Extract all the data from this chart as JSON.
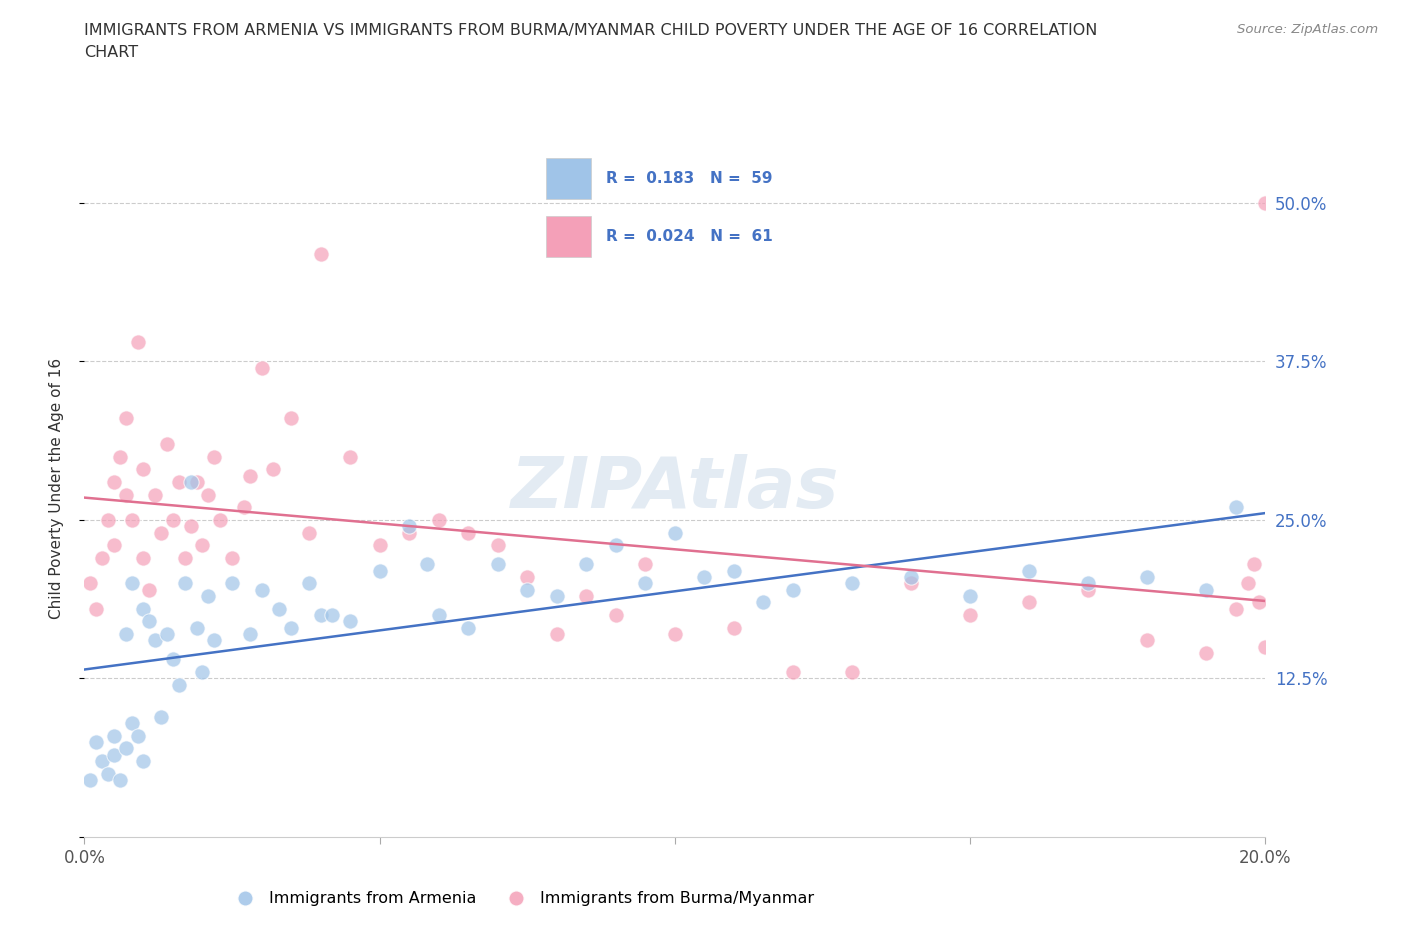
{
  "title_line1": "IMMIGRANTS FROM ARMENIA VS IMMIGRANTS FROM BURMA/MYANMAR CHILD POVERTY UNDER THE AGE OF 16 CORRELATION",
  "title_line2": "CHART",
  "source": "Source: ZipAtlas.com",
  "ylabel": "Child Poverty Under the Age of 16",
  "xlim": [
    0.0,
    0.2
  ],
  "ylim": [
    0.0,
    0.55
  ],
  "xticks": [
    0.0,
    0.05,
    0.1,
    0.15,
    0.2
  ],
  "xticklabels": [
    "0.0%",
    "",
    "",
    "",
    "20.0%"
  ],
  "yticks": [
    0.0,
    0.125,
    0.25,
    0.375,
    0.5
  ],
  "yticklabels_right": [
    "",
    "12.5%",
    "25.0%",
    "37.5%",
    "50.0%"
  ],
  "armenia_color": "#a0c4e8",
  "burma_color": "#f4a0b8",
  "armenia_line_color": "#4472c4",
  "burma_line_color": "#e07090",
  "watermark": "ZIPAtlas",
  "legend_armenia_text": "R =  0.183   N =  59",
  "legend_burma_text": "R =  0.024   N =  61",
  "legend_text_color": "#4472c4",
  "bottom_legend_armenia": "Immigrants from Armenia",
  "bottom_legend_burma": "Immigrants from Burma/Myanmar",
  "armenia_x": [
    0.001,
    0.002,
    0.003,
    0.004,
    0.005,
    0.005,
    0.006,
    0.007,
    0.007,
    0.008,
    0.008,
    0.009,
    0.01,
    0.01,
    0.011,
    0.012,
    0.013,
    0.014,
    0.015,
    0.016,
    0.017,
    0.018,
    0.019,
    0.02,
    0.021,
    0.022,
    0.025,
    0.028,
    0.03,
    0.033,
    0.035,
    0.038,
    0.04,
    0.042,
    0.045,
    0.05,
    0.055,
    0.058,
    0.06,
    0.065,
    0.07,
    0.075,
    0.08,
    0.085,
    0.09,
    0.095,
    0.1,
    0.105,
    0.11,
    0.115,
    0.12,
    0.13,
    0.14,
    0.15,
    0.16,
    0.17,
    0.18,
    0.19,
    0.195
  ],
  "armenia_y": [
    0.045,
    0.075,
    0.06,
    0.05,
    0.065,
    0.08,
    0.045,
    0.07,
    0.16,
    0.09,
    0.2,
    0.08,
    0.06,
    0.18,
    0.17,
    0.155,
    0.095,
    0.16,
    0.14,
    0.12,
    0.2,
    0.28,
    0.165,
    0.13,
    0.19,
    0.155,
    0.2,
    0.16,
    0.195,
    0.18,
    0.165,
    0.2,
    0.175,
    0.175,
    0.17,
    0.21,
    0.245,
    0.215,
    0.175,
    0.165,
    0.215,
    0.195,
    0.19,
    0.215,
    0.23,
    0.2,
    0.24,
    0.205,
    0.21,
    0.185,
    0.195,
    0.2,
    0.205,
    0.19,
    0.21,
    0.2,
    0.205,
    0.195,
    0.26
  ],
  "burma_x": [
    0.001,
    0.002,
    0.003,
    0.004,
    0.005,
    0.005,
    0.006,
    0.007,
    0.007,
    0.008,
    0.009,
    0.01,
    0.01,
    0.011,
    0.012,
    0.013,
    0.014,
    0.015,
    0.016,
    0.017,
    0.018,
    0.019,
    0.02,
    0.021,
    0.022,
    0.023,
    0.025,
    0.027,
    0.028,
    0.03,
    0.032,
    0.035,
    0.038,
    0.04,
    0.045,
    0.05,
    0.055,
    0.06,
    0.065,
    0.07,
    0.075,
    0.08,
    0.085,
    0.09,
    0.095,
    0.1,
    0.11,
    0.12,
    0.13,
    0.14,
    0.15,
    0.16,
    0.17,
    0.18,
    0.19,
    0.195,
    0.197,
    0.198,
    0.199,
    0.2,
    0.2
  ],
  "burma_y": [
    0.2,
    0.18,
    0.22,
    0.25,
    0.23,
    0.28,
    0.3,
    0.27,
    0.33,
    0.25,
    0.39,
    0.22,
    0.29,
    0.195,
    0.27,
    0.24,
    0.31,
    0.25,
    0.28,
    0.22,
    0.245,
    0.28,
    0.23,
    0.27,
    0.3,
    0.25,
    0.22,
    0.26,
    0.285,
    0.37,
    0.29,
    0.33,
    0.24,
    0.46,
    0.3,
    0.23,
    0.24,
    0.25,
    0.24,
    0.23,
    0.205,
    0.16,
    0.19,
    0.175,
    0.215,
    0.16,
    0.165,
    0.13,
    0.13,
    0.2,
    0.175,
    0.185,
    0.195,
    0.155,
    0.145,
    0.18,
    0.2,
    0.215,
    0.185,
    0.15,
    0.5
  ]
}
